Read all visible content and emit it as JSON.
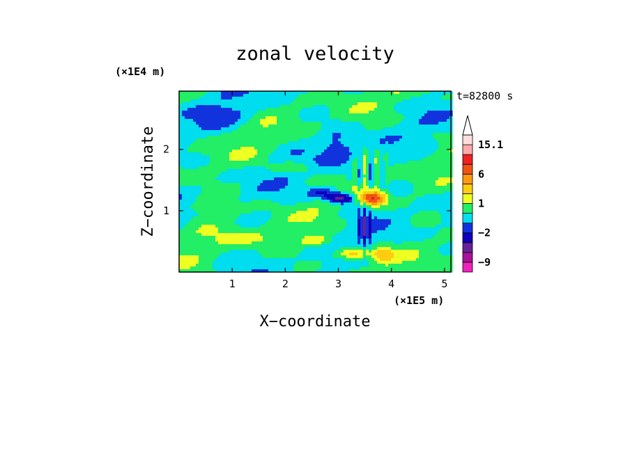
{
  "chart_data": {
    "type": "heatmap",
    "title": "zonal velocity",
    "xlabel": "X−coordinate",
    "ylabel": "Z−coordinate",
    "x_unit": "(×1E5 m)",
    "y_unit": "(×1E4 m)",
    "time_label": "t=82800 s",
    "xlim": [
      0,
      5.12
    ],
    "ylim": [
      0,
      2.95
    ],
    "x_ticks": [
      1,
      2,
      3,
      4,
      5
    ],
    "y_ticks": [
      1,
      2
    ],
    "colorbar": {
      "levels": [
        -12,
        -9,
        -6,
        -4,
        -2,
        -1,
        0,
        1,
        2,
        4,
        6,
        9,
        12,
        15.1
      ],
      "labels": [
        {
          "value": 15.1,
          "text": "15.1"
        },
        {
          "value": 6,
          "text": "6"
        },
        {
          "value": 1,
          "text": "1"
        },
        {
          "value": -2,
          "text": "−2"
        },
        {
          "value": -9,
          "text": "−9"
        }
      ],
      "colors": [
        "#ee22bb",
        "#aa1199",
        "#662299",
        "#1100bb",
        "#1133dd",
        "#00ddee",
        "#22ee66",
        "#eeff22",
        "#ffcc11",
        "#ff9911",
        "#ee5511",
        "#ee2222",
        "#ffaaaa",
        "#ffdddd"
      ],
      "extend_top": true
    },
    "features": [
      {
        "x": 3.6,
        "z": 1.2,
        "value": 6
      },
      {
        "x": 3.05,
        "z": 1.2,
        "value": -4
      },
      {
        "x": 3.55,
        "z": 0.7,
        "value": -4
      },
      {
        "x": 3.3,
        "z": 0.25,
        "value": 4
      },
      {
        "x": 0.6,
        "z": 1.1,
        "value": 1
      },
      {
        "x": 1.5,
        "z": 2.3,
        "value": -1
      }
    ]
  }
}
